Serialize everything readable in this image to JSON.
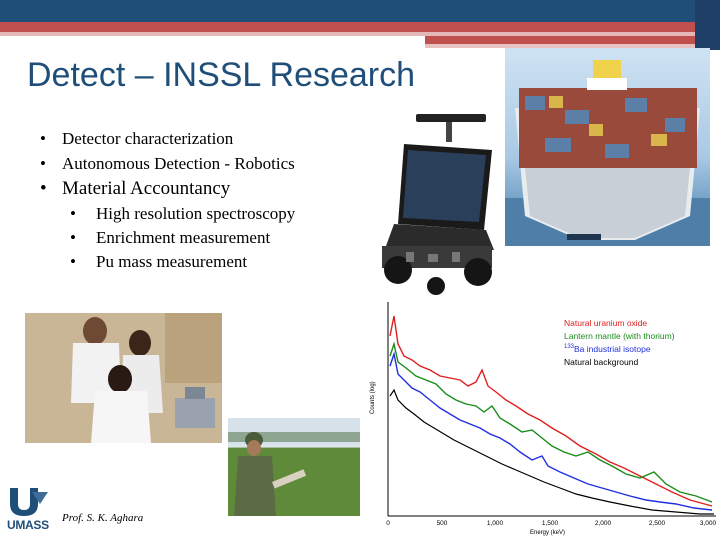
{
  "slide": {
    "title": "Detect – INSSL Research",
    "bullets": [
      "Detector characterization",
      "Autonomous Detection - Robotics",
      "Material Accountancy"
    ],
    "sub_bullets": [
      "High resolution spectroscopy",
      "Enrichment measurement",
      "Pu mass measurement"
    ],
    "author": "Prof. S. K. Aghara",
    "logo_text": "UMASS",
    "colors": {
      "header": "#1f4e79",
      "accent": "#c0504d"
    }
  },
  "images": {
    "ship_label": "",
    "spectrum": {
      "legend": [
        {
          "label": "Natural uranium oxide",
          "color": "#e02020"
        },
        {
          "label": "Lantern mantle (with thorium)",
          "color": "#1a8c1a"
        },
        {
          "label": "Ba industrial isotope",
          "superscript": "133",
          "color": "#2030e0"
        },
        {
          "label": "Natural background",
          "color": "#000000"
        }
      ],
      "ylabel": "Counts (log)",
      "xlabel": "Energy (keV)",
      "xticks": [
        "0",
        "500",
        "1,000",
        "1,500",
        "2,000",
        "2,500",
        "3,000"
      ]
    }
  }
}
